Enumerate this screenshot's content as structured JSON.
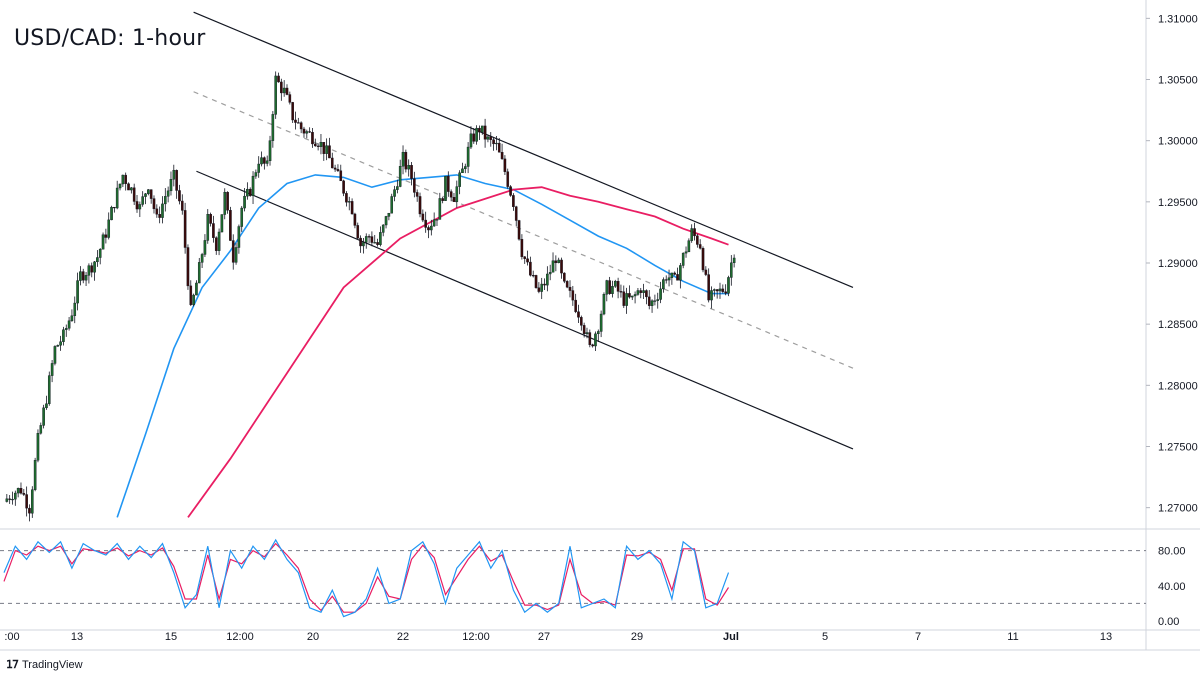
{
  "title": "USD/CAD: 1-hour",
  "brand": "TradingView",
  "brand_icon": "tradingview-logo-icon",
  "colors": {
    "up_candle": "#1e6b2e",
    "down_candle": "#3a0a0a",
    "ma_blue": "#2196f3",
    "ma_pink": "#e91e63",
    "channel": "#131722",
    "midline": "#9e9e9e",
    "stoch_k": "#2196f3",
    "stoch_d": "#e91e63"
  },
  "chart_data": [
    {
      "type": "candlestick",
      "name": "price",
      "y_ticks": [
        "1.31000",
        "1.30500",
        "1.30000",
        "1.29500",
        "1.29000",
        "1.28500",
        "1.28000",
        "1.27500",
        "1.27000"
      ],
      "y_tick_values": [
        1.31,
        1.305,
        1.3,
        1.295,
        1.29,
        1.285,
        1.28,
        1.275,
        1.27
      ],
      "x_ticks": [
        ":00",
        "13",
        "15",
        "12:00",
        "20",
        "22",
        "12:00",
        "27",
        "29",
        "Jul",
        "5",
        "7",
        "11",
        "13"
      ],
      "ylim": [
        1.2685,
        1.3115
      ],
      "close_path": [
        [
          0,
          1.2705
        ],
        [
          3,
          1.2712
        ],
        [
          6,
          1.2715
        ],
        [
          9,
          1.27
        ],
        [
          12,
          1.2755
        ],
        [
          15,
          1.279
        ],
        [
          18,
          1.283
        ],
        [
          21,
          1.284
        ],
        [
          24,
          1.286
        ],
        [
          27,
          1.289
        ],
        [
          30,
          1.2895
        ],
        [
          33,
          1.2905
        ],
        [
          36,
          1.2925
        ],
        [
          39,
          1.295
        ],
        [
          42,
          1.2972
        ],
        [
          45,
          1.296
        ],
        [
          48,
          1.2945
        ],
        [
          51,
          1.2965
        ],
        [
          54,
          1.2935
        ],
        [
          57,
          1.2955
        ],
        [
          60,
          1.297
        ],
        [
          63,
          1.294
        ],
        [
          66,
          1.286
        ],
        [
          69,
          1.2895
        ],
        [
          72,
          1.2935
        ],
        [
          75,
          1.2915
        ],
        [
          78,
          1.2955
        ],
        [
          81,
          1.2905
        ],
        [
          84,
          1.2945
        ],
        [
          87,
          1.296
        ],
        [
          90,
          1.2985
        ],
        [
          93,
          1.2978
        ],
        [
          96,
          1.305
        ],
        [
          99,
          1.304
        ],
        [
          102,
          1.302
        ],
        [
          105,
          1.301
        ],
        [
          108,
          1.3005
        ],
        [
          111,
          1.3
        ],
        [
          114,
          1.299
        ],
        [
          117,
          1.2975
        ],
        [
          120,
          1.296
        ],
        [
          123,
          1.2945
        ],
        [
          126,
          1.2915
        ],
        [
          129,
          1.2922
        ],
        [
          132,
          1.2915
        ],
        [
          135,
          1.2935
        ],
        [
          138,
          1.296
        ],
        [
          141,
          1.2985
        ],
        [
          144,
          1.297
        ],
        [
          147,
          1.2945
        ],
        [
          150,
          1.293
        ],
        [
          153,
          1.294
        ],
        [
          156,
          1.2965
        ],
        [
          159,
          1.2955
        ],
        [
          162,
          1.2975
        ],
        [
          165,
          1.3
        ],
        [
          168,
          1.301
        ],
        [
          171,
          1.3
        ],
        [
          174,
          1.2995
        ],
        [
          177,
          1.2975
        ],
        [
          180,
          1.295
        ],
        [
          183,
          1.291
        ],
        [
          186,
          1.289
        ],
        [
          189,
          1.2875
        ],
        [
          192,
          1.2888
        ],
        [
          195,
          1.2905
        ],
        [
          198,
          1.288
        ],
        [
          201,
          1.287
        ],
        [
          204,
          1.2855
        ],
        [
          207,
          1.283
        ],
        [
          210,
          1.285
        ],
        [
          213,
          1.288
        ],
        [
          216,
          1.288
        ],
        [
          219,
          1.287
        ],
        [
          222,
          1.287
        ],
        [
          225,
          1.288
        ],
        [
          228,
          1.2865
        ],
        [
          231,
          1.2875
        ],
        [
          234,
          1.289
        ],
        [
          237,
          1.2885
        ],
        [
          240,
          1.2905
        ],
        [
          243,
          1.2925
        ],
        [
          246,
          1.2915
        ],
        [
          249,
          1.287
        ],
        [
          252,
          1.2875
        ],
        [
          255,
          1.288
        ],
        [
          258,
          1.291
        ]
      ],
      "total_bars": 258,
      "visible_x_span": 355,
      "ma_blue": [
        [
          40,
          1.2692
        ],
        [
          50,
          1.276
        ],
        [
          60,
          1.283
        ],
        [
          70,
          1.288
        ],
        [
          80,
          1.291
        ],
        [
          90,
          1.2945
        ],
        [
          100,
          1.2965
        ],
        [
          110,
          1.2972
        ],
        [
          120,
          1.297
        ],
        [
          130,
          1.2962
        ],
        [
          140,
          1.2968
        ],
        [
          150,
          1.297
        ],
        [
          160,
          1.2972
        ],
        [
          170,
          1.2965
        ],
        [
          180,
          1.296
        ],
        [
          190,
          1.2948
        ],
        [
          200,
          1.2935
        ],
        [
          210,
          1.2922
        ],
        [
          220,
          1.2912
        ],
        [
          230,
          1.2898
        ],
        [
          240,
          1.2885
        ],
        [
          250,
          1.2875
        ],
        [
          256,
          1.2875
        ]
      ],
      "ma_pink": [
        [
          65,
          1.2692
        ],
        [
          80,
          1.274
        ],
        [
          100,
          1.281
        ],
        [
          120,
          1.288
        ],
        [
          140,
          1.292
        ],
        [
          160,
          1.2945
        ],
        [
          180,
          1.296
        ],
        [
          190,
          1.2962
        ],
        [
          200,
          1.2955
        ],
        [
          210,
          1.295
        ],
        [
          220,
          1.2944
        ],
        [
          230,
          1.2938
        ],
        [
          240,
          1.2928
        ],
        [
          250,
          1.292
        ],
        [
          256,
          1.2915
        ]
      ],
      "channel_upper": [
        [
          67,
          1.3105
        ],
        [
          300,
          1.288
        ]
      ],
      "channel_lower": [
        [
          68,
          1.2975
        ],
        [
          300,
          1.2748
        ]
      ],
      "channel_mid": [
        [
          67,
          1.304
        ],
        [
          300,
          1.2814
        ]
      ]
    },
    {
      "type": "line",
      "name": "stochastic",
      "y_ticks": [
        "80.00",
        "40.00",
        "0.00"
      ],
      "y_tick_values": [
        80,
        40,
        0
      ],
      "ylim": [
        -8,
        100
      ],
      "levels": [
        80,
        20
      ],
      "k": [
        [
          0,
          55
        ],
        [
          4,
          85
        ],
        [
          8,
          70
        ],
        [
          12,
          90
        ],
        [
          16,
          78
        ],
        [
          20,
          90
        ],
        [
          24,
          60
        ],
        [
          28,
          88
        ],
        [
          32,
          80
        ],
        [
          36,
          75
        ],
        [
          40,
          88
        ],
        [
          44,
          70
        ],
        [
          48,
          85
        ],
        [
          52,
          72
        ],
        [
          56,
          88
        ],
        [
          60,
          55
        ],
        [
          64,
          15
        ],
        [
          68,
          30
        ],
        [
          72,
          85
        ],
        [
          76,
          15
        ],
        [
          80,
          80
        ],
        [
          84,
          60
        ],
        [
          88,
          85
        ],
        [
          92,
          70
        ],
        [
          96,
          92
        ],
        [
          100,
          70
        ],
        [
          104,
          55
        ],
        [
          108,
          15
        ],
        [
          112,
          10
        ],
        [
          116,
          35
        ],
        [
          120,
          5
        ],
        [
          124,
          10
        ],
        [
          128,
          25
        ],
        [
          132,
          60
        ],
        [
          136,
          20
        ],
        [
          140,
          25
        ],
        [
          144,
          80
        ],
        [
          148,
          90
        ],
        [
          152,
          65
        ],
        [
          156,
          20
        ],
        [
          160,
          60
        ],
        [
          164,
          75
        ],
        [
          168,
          90
        ],
        [
          172,
          60
        ],
        [
          176,
          80
        ],
        [
          180,
          35
        ],
        [
          184,
          10
        ],
        [
          188,
          20
        ],
        [
          192,
          10
        ],
        [
          196,
          20
        ],
        [
          200,
          85
        ],
        [
          204,
          15
        ],
        [
          208,
          20
        ],
        [
          212,
          25
        ],
        [
          216,
          15
        ],
        [
          220,
          85
        ],
        [
          224,
          70
        ],
        [
          228,
          80
        ],
        [
          232,
          65
        ],
        [
          236,
          25
        ],
        [
          240,
          90
        ],
        [
          244,
          80
        ],
        [
          248,
          15
        ],
        [
          252,
          20
        ],
        [
          256,
          55
        ]
      ],
      "d": [
        [
          0,
          45
        ],
        [
          4,
          80
        ],
        [
          8,
          75
        ],
        [
          12,
          85
        ],
        [
          16,
          80
        ],
        [
          20,
          85
        ],
        [
          24,
          65
        ],
        [
          28,
          82
        ],
        [
          32,
          80
        ],
        [
          36,
          77
        ],
        [
          40,
          83
        ],
        [
          44,
          74
        ],
        [
          48,
          80
        ],
        [
          52,
          75
        ],
        [
          56,
          83
        ],
        [
          60,
          62
        ],
        [
          64,
          25
        ],
        [
          68,
          25
        ],
        [
          72,
          75
        ],
        [
          76,
          25
        ],
        [
          80,
          70
        ],
        [
          84,
          65
        ],
        [
          88,
          80
        ],
        [
          92,
          73
        ],
        [
          96,
          88
        ],
        [
          100,
          75
        ],
        [
          104,
          60
        ],
        [
          108,
          25
        ],
        [
          112,
          12
        ],
        [
          116,
          28
        ],
        [
          120,
          10
        ],
        [
          124,
          10
        ],
        [
          128,
          20
        ],
        [
          132,
          50
        ],
        [
          136,
          28
        ],
        [
          140,
          25
        ],
        [
          144,
          70
        ],
        [
          148,
          86
        ],
        [
          152,
          72
        ],
        [
          156,
          30
        ],
        [
          160,
          50
        ],
        [
          164,
          70
        ],
        [
          168,
          85
        ],
        [
          172,
          68
        ],
        [
          176,
          75
        ],
        [
          180,
          45
        ],
        [
          184,
          18
        ],
        [
          188,
          18
        ],
        [
          192,
          13
        ],
        [
          196,
          18
        ],
        [
          200,
          70
        ],
        [
          204,
          30
        ],
        [
          208,
          20
        ],
        [
          212,
          22
        ],
        [
          216,
          18
        ],
        [
          220,
          75
        ],
        [
          224,
          74
        ],
        [
          228,
          78
        ],
        [
          232,
          70
        ],
        [
          236,
          35
        ],
        [
          240,
          82
        ],
        [
          244,
          82
        ],
        [
          248,
          25
        ],
        [
          252,
          18
        ],
        [
          256,
          38
        ]
      ]
    }
  ]
}
